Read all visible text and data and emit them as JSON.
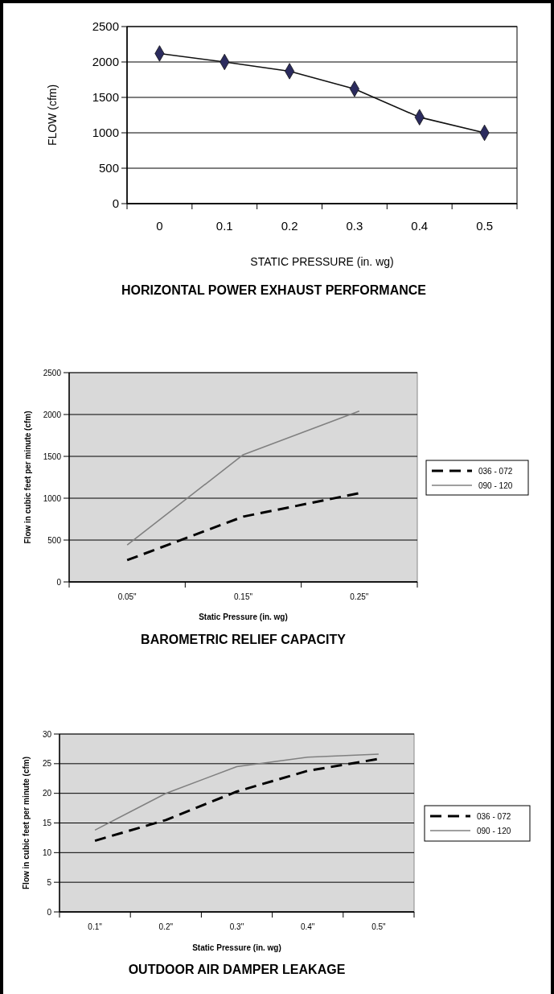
{
  "chart_data": [
    {
      "type": "line",
      "title": "HORIZONTAL POWER EXHAUST PERFORMANCE",
      "xlabel": "STATIC PRESSURE (in. wg)",
      "ylabel": "FLOW (cfm)",
      "categories": [
        "0",
        "0.1",
        "0.2",
        "0.3",
        "0.4",
        "0.5"
      ],
      "series": [
        {
          "color": "#2b2b5e",
          "values": [
            2120,
            2000,
            1870,
            1620,
            1220,
            1000
          ]
        }
      ],
      "ylim": [
        0,
        2500
      ],
      "yticks": [
        0,
        500,
        1000,
        1500,
        2000,
        2500
      ],
      "grid": "y",
      "marker": "diamond",
      "line_style": "solid"
    },
    {
      "type": "line",
      "title": "BAROMETRIC RELIEF CAPACITY",
      "xlabel": "Static Pressure (in. wg)",
      "ylabel": "Flow in cubic feet per minute (cfm)",
      "categories": [
        "0.05\"",
        "0.15\"",
        "0.25\""
      ],
      "series": [
        {
          "name": "036 - 072",
          "color": "#000000",
          "line_style": "dashed",
          "values": [
            260,
            780,
            1060
          ]
        },
        {
          "name": "090 - 120",
          "color": "#808080",
          "line_style": "solid",
          "values": [
            440,
            1520,
            2040
          ]
        }
      ],
      "ylim": [
        0,
        2500
      ],
      "yticks": [
        0,
        500,
        1000,
        1500,
        2000,
        2500
      ],
      "grid": "y",
      "legend": "right"
    },
    {
      "type": "line",
      "title": "OUTDOOR AIR DAMPER LEAKAGE",
      "xlabel": "Static Pressure (in. wg)",
      "ylabel": "Flow in cubic feet per minute (cfm)",
      "categories": [
        "0.1\"",
        "0.2\"",
        "0.3\"",
        "0.4\"",
        "0.5\""
      ],
      "series": [
        {
          "name": "036 - 072",
          "color": "#000000",
          "line_style": "dashed",
          "values": [
            12,
            15.5,
            20.3,
            23.8,
            25.8
          ]
        },
        {
          "name": "090 - 120",
          "color": "#808080",
          "line_style": "solid",
          "values": [
            13.8,
            20,
            24.5,
            26.1,
            26.6
          ]
        }
      ],
      "ylim": [
        0,
        30
      ],
      "yticks": [
        0,
        5,
        10,
        15,
        20,
        25,
        30
      ],
      "grid": "y",
      "legend": "right"
    }
  ]
}
